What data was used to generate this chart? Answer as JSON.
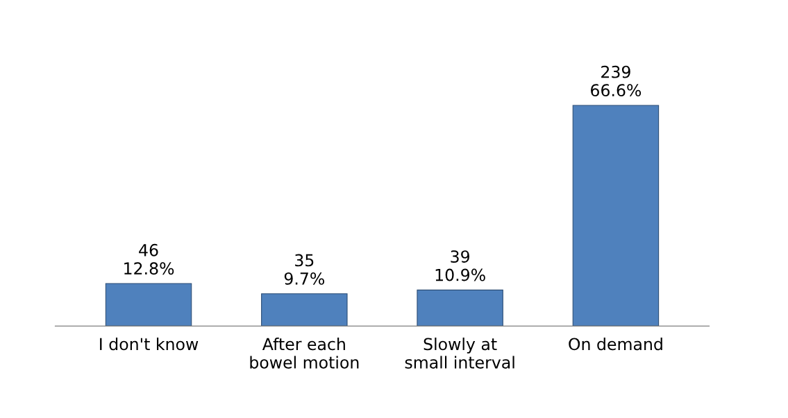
{
  "chart_data": {
    "type": "bar",
    "categories": [
      "I don't know",
      "After each\nbowel motion",
      "Slowly at\nsmall interval",
      "On demand"
    ],
    "values": [
      46,
      35,
      39,
      239
    ],
    "value_labels": [
      "46\n12.8%",
      "35\n9.7%",
      "39\n10.9%",
      "239\n66.6%"
    ],
    "color": "#4f81bd",
    "tick_labels": "x",
    "grid": false
  }
}
